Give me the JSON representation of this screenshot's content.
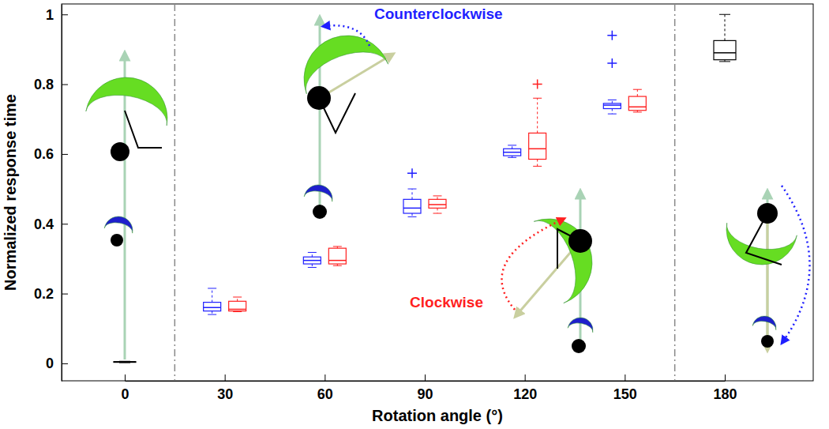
{
  "chart_data": {
    "type": "box",
    "x_label": "Rotation angle (°)",
    "y_label": "Normalized response time",
    "categories": [
      "0",
      "30",
      "60",
      "90",
      "120",
      "150",
      "180"
    ],
    "ylim": [
      -0.05,
      1.03
    ],
    "yticks": [
      0,
      0.2,
      0.4,
      0.6,
      0.8,
      1
    ],
    "grid": false,
    "series": [
      {
        "name": "Counterclockwise",
        "color": "#1f1fff",
        "values": [
          null,
          {
            "min": 0.14,
            "q1": 0.15,
            "median": 0.16,
            "q3": 0.175,
            "max": 0.215
          },
          {
            "min": 0.275,
            "q1": 0.285,
            "median": 0.295,
            "q3": 0.305,
            "max": 0.318
          },
          {
            "min": 0.42,
            "q1": 0.43,
            "median": 0.445,
            "q3": 0.47,
            "max": 0.5,
            "outliers": [
              0.545
            ]
          },
          {
            "min": 0.59,
            "q1": 0.595,
            "median": 0.605,
            "q3": 0.615,
            "max": 0.625
          },
          {
            "min": 0.715,
            "q1": 0.73,
            "median": 0.74,
            "q3": 0.745,
            "max": 0.755,
            "outliers": [
              0.86,
              0.94
            ]
          },
          null
        ]
      },
      {
        "name": "Clockwise",
        "color": "#ff1f1f",
        "values": [
          null,
          {
            "min": 0.148,
            "q1": 0.15,
            "median": 0.155,
            "q3": 0.178,
            "max": 0.19
          },
          {
            "min": 0.28,
            "q1": 0.285,
            "median": 0.295,
            "q3": 0.33,
            "max": 0.335
          },
          {
            "min": 0.43,
            "q1": 0.445,
            "median": 0.455,
            "q3": 0.47,
            "max": 0.48
          },
          {
            "min": 0.565,
            "q1": 0.585,
            "median": 0.615,
            "q3": 0.66,
            "max": 0.76,
            "outliers": [
              0.8
            ]
          },
          {
            "min": 0.72,
            "q1": 0.725,
            "median": 0.735,
            "q3": 0.765,
            "max": 0.785
          },
          null
        ]
      },
      {
        "color": "#000000",
        "values": [
          {
            "min": 0.002,
            "q1": 0.003,
            "median": 0.004,
            "q3": 0.005,
            "max": 0.006
          },
          null,
          null,
          null,
          null,
          null,
          {
            "min": 0.865,
            "q1": 0.87,
            "median": 0.89,
            "q3": 0.925,
            "max": 1.0
          }
        ]
      }
    ]
  }
}
